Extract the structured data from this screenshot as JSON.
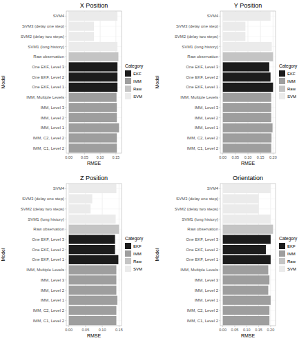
{
  "chart_data": [
    {
      "type": "bar",
      "orientation": "horizontal",
      "title": "X Position",
      "x_label": "RMSE",
      "y_label": "Model",
      "categories": [
        "SVM4",
        "SVM3 (delay one step)",
        "SVM2 (delay two steps)",
        "SVM1 (long history)",
        "Raw observation",
        "One EKF, Level 3",
        "One EKF, Level 2",
        "One EKF, Level 1",
        "IMM, Multiple Levels",
        "IMM, Level 3",
        "IMM, Level 2",
        "IMM, Level 1",
        "IMM, C2, Level 2",
        "IMM, C1, Level 2"
      ],
      "values": [
        0.155,
        0.08,
        0.08,
        0.155,
        0.158,
        0.155,
        0.155,
        0.155,
        0.152,
        0.153,
        0.153,
        0.16,
        0.153,
        0.153
      ],
      "colors": [
        "#ebebeb",
        "#ebebeb",
        "#ebebeb",
        "#ebebeb",
        "#c4c4c4",
        "#1c1c1c",
        "#1c1c1c",
        "#1c1c1c",
        "#9e9e9e",
        "#9e9e9e",
        "#9e9e9e",
        "#9e9e9e",
        "#9e9e9e",
        "#9e9e9e"
      ],
      "xlim": [
        -0.008,
        0.168
      ],
      "xticks": [
        {
          "value": 0,
          "label": "0.00"
        },
        {
          "value": 0.05,
          "label": "0.05"
        },
        {
          "value": 0.1,
          "label": "0.10"
        },
        {
          "value": 0.15,
          "label": "0.15"
        }
      ],
      "grid": true,
      "legend": "right",
      "legend_title": "Category",
      "legend_entries": [
        {
          "name": "EKF",
          "color": "#1c1c1c"
        },
        {
          "name": "IMM",
          "color": "#9e9e9e"
        },
        {
          "name": "Raw",
          "color": "#c4c4c4"
        },
        {
          "name": "SVM",
          "color": "#ebebeb"
        }
      ]
    },
    {
      "type": "bar",
      "orientation": "horizontal",
      "title": "Y Position",
      "x_label": "RMSE",
      "y_label": "Model",
      "categories": [
        "SVM4",
        "SVM3 (delay one step)",
        "SVM2 (delay two steps)",
        "SVM1 (long history)",
        "Raw observation",
        "One EKF, Level 3",
        "One EKF, Level 2",
        "One EKF, Level 1",
        "IMM, Multiple Levels",
        "IMM, Level 3",
        "IMM, Level 2",
        "IMM, Level 1",
        "IMM, C2, Level 2",
        "IMM, C1, Level 2"
      ],
      "values": [
        0.19,
        0.09,
        0.09,
        0.195,
        0.2,
        0.185,
        0.19,
        0.2,
        0.193,
        0.193,
        0.193,
        0.198,
        0.194,
        0.193
      ],
      "colors": [
        "#ebebeb",
        "#ebebeb",
        "#ebebeb",
        "#ebebeb",
        "#c4c4c4",
        "#1c1c1c",
        "#1c1c1c",
        "#1c1c1c",
        "#9e9e9e",
        "#9e9e9e",
        "#9e9e9e",
        "#9e9e9e",
        "#9e9e9e",
        "#9e9e9e"
      ],
      "xlim": [
        -0.01,
        0.21
      ],
      "xticks": [
        {
          "value": 0,
          "label": "0.00"
        },
        {
          "value": 0.05,
          "label": "0.05"
        },
        {
          "value": 0.1,
          "label": "0.10"
        },
        {
          "value": 0.15,
          "label": "0.15"
        },
        {
          "value": 0.2,
          "label": "0.20"
        }
      ],
      "grid": true,
      "legend": "right",
      "legend_title": "Category",
      "legend_entries": [
        {
          "name": "EKF",
          "color": "#1c1c1c"
        },
        {
          "name": "IMM",
          "color": "#9e9e9e"
        },
        {
          "name": "Raw",
          "color": "#c4c4c4"
        },
        {
          "name": "SVM",
          "color": "#ebebeb"
        }
      ]
    },
    {
      "type": "bar",
      "orientation": "horizontal",
      "title": "Z Position",
      "x_label": "RMSE",
      "y_label": "Model",
      "categories": [
        "SVM4",
        "SVM3 (delay one step)",
        "SVM2 (delay two steps)",
        "SVM1 (long history)",
        "Raw observation",
        "One EKF, Level 3",
        "One EKF, Level 2",
        "One EKF, Level 1",
        "IMM, Multiple Levels",
        "IMM, Level 3",
        "IMM, Level 2",
        "IMM, Level 1",
        "IMM, C2, Level 2",
        "IMM, C1, Level 2"
      ],
      "values": [
        0.142,
        0.07,
        0.065,
        0.14,
        0.15,
        0.138,
        0.138,
        0.148,
        0.142,
        0.142,
        0.142,
        0.145,
        0.142,
        0.142
      ],
      "colors": [
        "#ebebeb",
        "#ebebeb",
        "#ebebeb",
        "#ebebeb",
        "#c4c4c4",
        "#1c1c1c",
        "#1c1c1c",
        "#1c1c1c",
        "#9e9e9e",
        "#9e9e9e",
        "#9e9e9e",
        "#9e9e9e",
        "#9e9e9e",
        "#9e9e9e"
      ],
      "xlim": [
        -0.0075,
        0.1575
      ],
      "xticks": [
        {
          "value": 0,
          "label": "0.00"
        },
        {
          "value": 0.05,
          "label": "0.05"
        },
        {
          "value": 0.1,
          "label": "0.10"
        },
        {
          "value": 0.15,
          "label": "0.15"
        }
      ],
      "grid": true,
      "legend": "right",
      "legend_title": "Category",
      "legend_entries": [
        {
          "name": "EKF",
          "color": "#1c1c1c"
        },
        {
          "name": "IMM",
          "color": "#9e9e9e"
        },
        {
          "name": "Raw",
          "color": "#c4c4c4"
        },
        {
          "name": "SVM",
          "color": "#ebebeb"
        }
      ]
    },
    {
      "type": "bar",
      "orientation": "horizontal",
      "title": "Orientation",
      "x_label": "RMSE",
      "y_label": "Model",
      "categories": [
        "SVM4",
        "SVM3 (delay one step)",
        "SVM2 (delay two steps)",
        "SVM1 (long history)",
        "Raw observation",
        "One EKF, Level 3",
        "One EKF, Level 2",
        "One EKF, Level 1",
        "IMM, Multiple Levels",
        "IMM, Level 3",
        "IMM, Level 2",
        "IMM, Level 1",
        "IMM, C2, Level 2",
        "IMM, C1, Level 2"
      ],
      "values": [
        0.2,
        0.15,
        0.15,
        0.2,
        0.21,
        0.2,
        0.18,
        0.2,
        0.19,
        0.195,
        0.19,
        0.2,
        0.195,
        0.195
      ],
      "colors": [
        "#ebebeb",
        "#ebebeb",
        "#ebebeb",
        "#ebebeb",
        "#c4c4c4",
        "#1c1c1c",
        "#1c1c1c",
        "#1c1c1c",
        "#9e9e9e",
        "#9e9e9e",
        "#9e9e9e",
        "#9e9e9e",
        "#9e9e9e",
        "#9e9e9e"
      ],
      "xlim": [
        -0.0105,
        0.2205
      ],
      "xticks": [
        {
          "value": 0,
          "label": "0.00"
        },
        {
          "value": 0.05,
          "label": "0.05"
        },
        {
          "value": 0.1,
          "label": "0.10"
        },
        {
          "value": 0.15,
          "label": "0.15"
        },
        {
          "value": 0.2,
          "label": "0.20"
        }
      ],
      "grid": true,
      "legend": "right",
      "legend_title": "Category",
      "legend_entries": [
        {
          "name": "EKF",
          "color": "#1c1c1c"
        },
        {
          "name": "IMM",
          "color": "#9e9e9e"
        },
        {
          "name": "Raw",
          "color": "#c4c4c4"
        },
        {
          "name": "SVM",
          "color": "#ebebeb"
        }
      ]
    }
  ]
}
